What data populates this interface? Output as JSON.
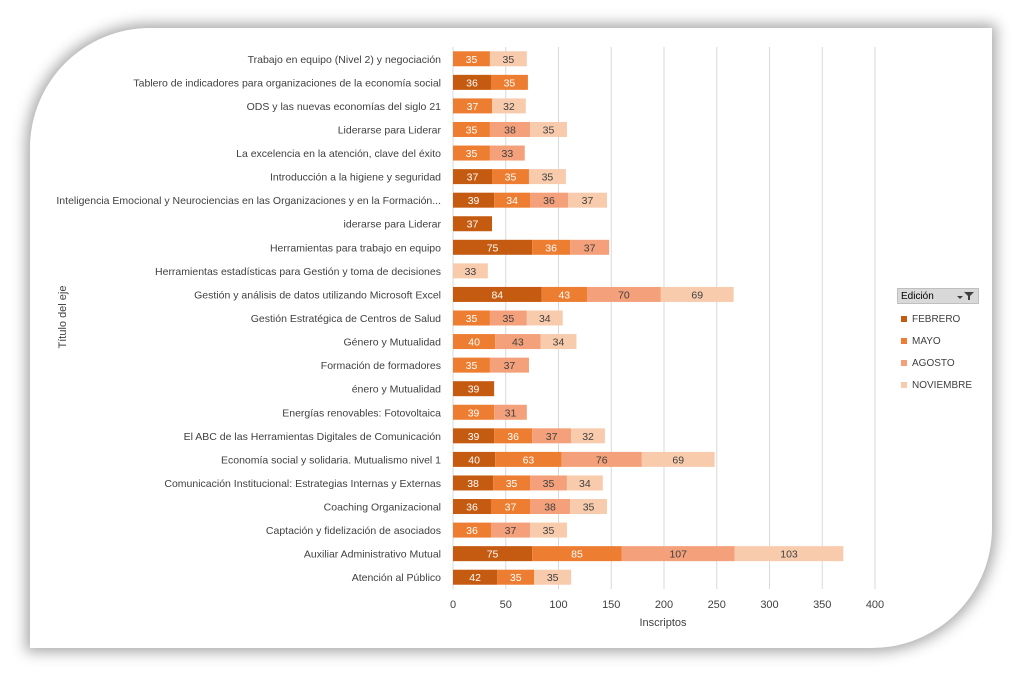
{
  "legend": {
    "title": "Edición",
    "filter_icon": "filter-dropdown-icon"
  },
  "colors": {
    "series": [
      "#c55a11",
      "#ed7d31",
      "#f4a07a",
      "#f8cbad"
    ],
    "grid": "#d9d9d9",
    "text": "#404040",
    "bar_text_dark": "#ffffff",
    "bar_text_light": "#404040"
  },
  "chart_data": {
    "type": "bar",
    "orientation": "horizontal",
    "stacked": true,
    "title": "",
    "xlabel": "Inscriptos",
    "ylabel": "Título del eje",
    "xlim": [
      0,
      400
    ],
    "xticks": [
      0,
      50,
      100,
      150,
      200,
      250,
      300,
      350,
      400
    ],
    "grid": true,
    "legend_position": "right",
    "categories": [
      "Trabajo en equipo (Nivel 2) y negociación",
      "Tablero de indicadores para organizaciones de la economía social",
      "ODS y las nuevas economías del siglo 21",
      "Liderarse para Liderar",
      "La excelencia en la atención, clave del éxito",
      "Introducción a la higiene y seguridad",
      "Inteligencia Emocional y Neurociencias en las Organizaciones y en la Formación...",
      "iderarse para Liderar",
      "Herramientas para trabajo en equipo",
      "Herramientas estadísticas para Gestión y toma de decisiones",
      "Gestión y análisis de datos utilizando Microsoft Excel",
      "Gestión Estratégica de Centros de Salud",
      "Género y Mutualidad",
      "Formación de formadores",
      "énero y Mutualidad",
      "Energías renovables: Fotovoltaica",
      "El ABC de las Herramientas Digitales de Comunicación",
      "Economía social y solidaria. Mutualismo nivel 1",
      "Comunicación Institucional: Estrategias Internas y Externas",
      "Coaching Organizacional",
      "Captación y fidelización de asociados",
      "Auxiliar Administrativo Mutual",
      "Atención al Público"
    ],
    "series": [
      {
        "name": "FEBRERO",
        "values": [
          null,
          36,
          null,
          null,
          null,
          37,
          39,
          37,
          75,
          null,
          84,
          null,
          null,
          null,
          39,
          null,
          39,
          40,
          38,
          36,
          null,
          75,
          42
        ]
      },
      {
        "name": "MAYO",
        "values": [
          35,
          35,
          37,
          35,
          35,
          35,
          34,
          null,
          36,
          null,
          43,
          35,
          40,
          35,
          null,
          39,
          36,
          63,
          35,
          37,
          36,
          85,
          35
        ]
      },
      {
        "name": "AGOSTO",
        "values": [
          null,
          null,
          null,
          38,
          33,
          null,
          36,
          null,
          37,
          null,
          70,
          35,
          43,
          37,
          null,
          31,
          37,
          76,
          35,
          38,
          37,
          107,
          null
        ]
      },
      {
        "name": "NOVIEMBRE",
        "values": [
          35,
          null,
          32,
          35,
          null,
          35,
          37,
          null,
          null,
          33,
          69,
          34,
          34,
          null,
          null,
          null,
          32,
          69,
          34,
          35,
          35,
          103,
          35
        ]
      }
    ]
  }
}
